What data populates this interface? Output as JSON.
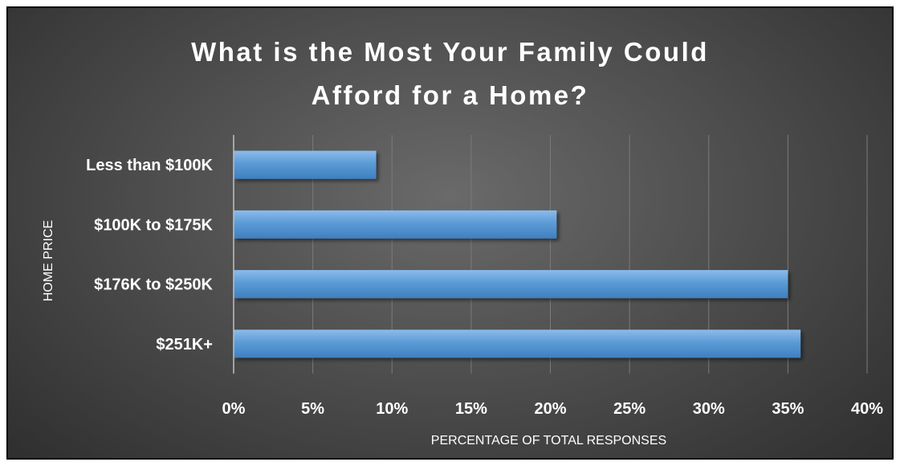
{
  "chart_data": {
    "type": "bar",
    "orientation": "horizontal",
    "title": "What is the Most Your Family Could Afford for a Home?",
    "title_lines": [
      "What is the Most Your Family Could",
      "Afford for a Home?"
    ],
    "categories": [
      "Less than $100K",
      "$100K to $175K",
      "$176K to $250K",
      "$251K+"
    ],
    "values": [
      9,
      20.4,
      35,
      35.8
    ],
    "xlabel": "PERCENTAGE OF TOTAL RESPONSES",
    "ylabel": "HOME PRICE",
    "xlim": [
      0,
      40
    ],
    "xticks": [
      "0%",
      "5%",
      "10%",
      "15%",
      "20%",
      "25%",
      "30%",
      "35%",
      "40%"
    ],
    "grid": true,
    "legend": "none",
    "colors": {
      "bar": "#5b9bd5",
      "bar_light": "#8cbcec",
      "bar_dark": "#3f7fc0",
      "text": "#ffffff",
      "grid": "#7a7a7a",
      "axis": "#bfbfbf"
    }
  }
}
